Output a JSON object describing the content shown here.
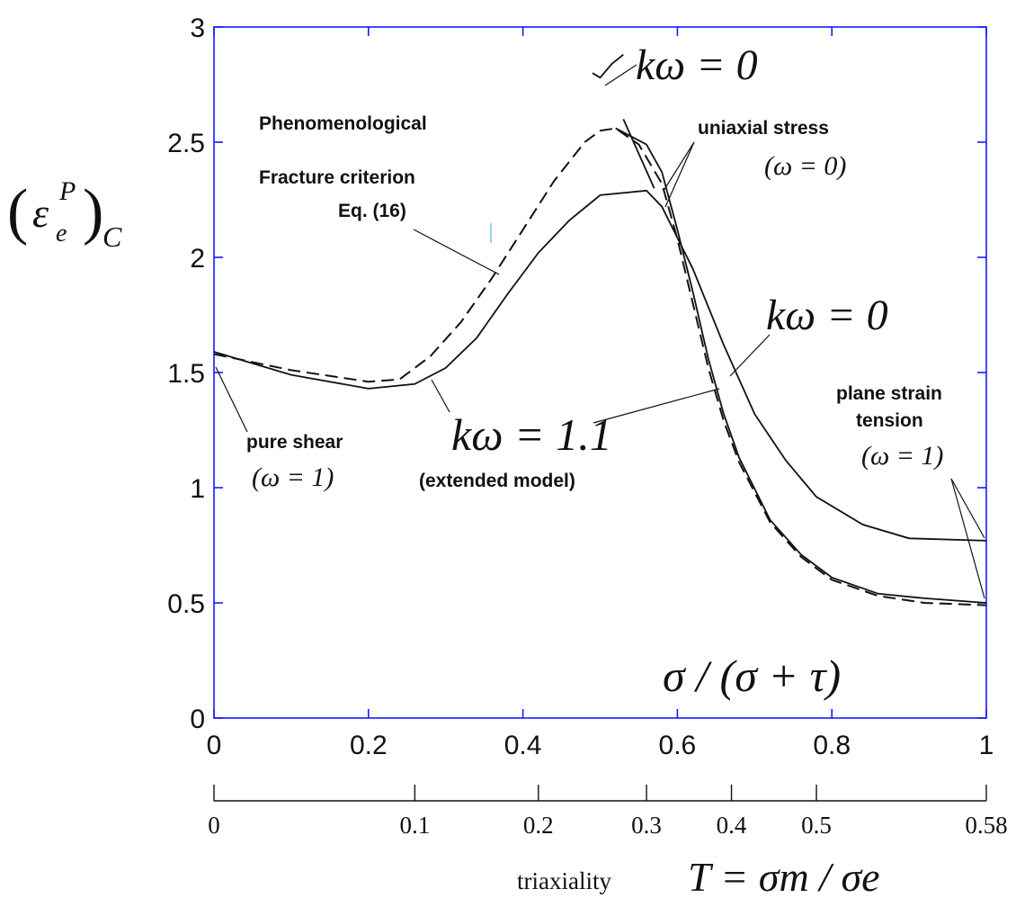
{
  "chart_data": {
    "type": "line",
    "x_axis": {
      "label": "σ / (σ + τ)",
      "range": [
        0,
        1
      ],
      "ticks": [
        "0",
        "0.2",
        "0.4",
        "0.6",
        "0.8",
        "1"
      ]
    },
    "y_axis": {
      "label": "(ε_e^P)_C",
      "range": [
        0,
        3
      ],
      "ticks": [
        "0",
        "0.5",
        "1",
        "1.5",
        "2",
        "2.5",
        "3"
      ]
    },
    "secondary_x_axis": {
      "label_prefix": "triaxiality",
      "label_math": "T = σm / σe",
      "ticks": [
        {
          "label": "0",
          "x": 0
        },
        {
          "label": "0.1",
          "x": 0.26
        },
        {
          "label": "0.2",
          "x": 0.42
        },
        {
          "label": "0.3",
          "x": 0.56
        },
        {
          "label": "0.4",
          "x": 0.67
        },
        {
          "label": "0.5",
          "x": 0.78
        },
        {
          "label": "0.58",
          "x": 1.0
        }
      ]
    },
    "series": [
      {
        "style": "solid",
        "x": [
          0,
          0.1,
          0.2,
          0.26,
          0.3,
          0.34,
          0.38,
          0.42,
          0.46,
          0.5,
          0.56,
          0.58,
          0.62,
          0.66,
          0.7,
          0.74,
          0.78,
          0.84,
          0.9,
          1.0
        ],
        "y": [
          1.59,
          1.49,
          1.43,
          1.45,
          1.52,
          1.65,
          1.84,
          2.02,
          2.16,
          2.27,
          2.29,
          2.22,
          1.95,
          1.62,
          1.32,
          1.12,
          0.96,
          0.84,
          0.78,
          0.77
        ]
      },
      {
        "style": "solid",
        "x": [
          0.52,
          0.56,
          0.58,
          0.6,
          0.62,
          0.64,
          0.66,
          0.68,
          0.72,
          0.76,
          0.8,
          0.86,
          0.92,
          1.0
        ],
        "y": [
          2.56,
          2.49,
          2.37,
          2.12,
          1.85,
          1.56,
          1.32,
          1.13,
          0.86,
          0.71,
          0.61,
          0.54,
          0.52,
          0.5
        ]
      },
      {
        "style": "dashed",
        "x": [
          0,
          0.1,
          0.2,
          0.24,
          0.28,
          0.32,
          0.36,
          0.4,
          0.44,
          0.48,
          0.5,
          0.52,
          0.55,
          0.58,
          0.6,
          0.62,
          0.64,
          0.66,
          0.68,
          0.72,
          0.76,
          0.8,
          0.86,
          0.92,
          1.0
        ],
        "y": [
          1.58,
          1.51,
          1.46,
          1.47,
          1.57,
          1.72,
          1.91,
          2.12,
          2.33,
          2.5,
          2.55,
          2.56,
          2.49,
          2.32,
          2.08,
          1.8,
          1.52,
          1.29,
          1.11,
          0.85,
          0.7,
          0.6,
          0.53,
          0.5,
          0.49
        ]
      },
      {
        "style": "solid",
        "x": [
          0.49,
          0.5,
          0.515,
          0.53
        ],
        "y": [
          2.8,
          2.78,
          2.84,
          2.88
        ]
      },
      {
        "style": "solid",
        "x": [
          0.53,
          0.57
        ],
        "y": [
          2.6,
          2.3
        ]
      }
    ],
    "annotations": {
      "pure_shear": "pure shear",
      "omega_1_left": "(ω = 1)",
      "phenom_line1": "Phenomenological",
      "phenom_line2": "Fracture criterion",
      "phenom_line3": "Eq. (16)",
      "k_top": "kω = 0",
      "uniaxial": "uniaxial stress",
      "omega_0": "(ω = 0)",
      "k_mid": "kω = 0",
      "k_ext": "kω = 1.1",
      "extended": "(extended model)",
      "plane_strain_1": "plane strain",
      "plane_strain_2": "tension",
      "omega_1_right": "(ω = 1)",
      "sigma_label": "σ / (σ + τ)"
    }
  }
}
